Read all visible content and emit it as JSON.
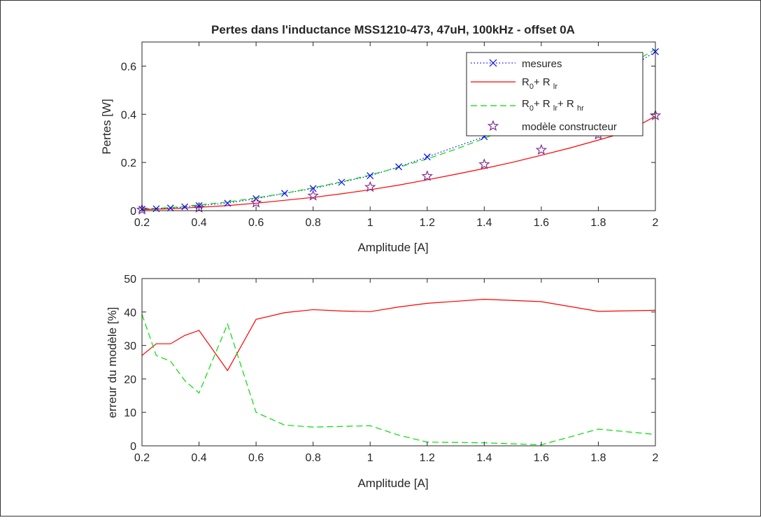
{
  "chart_data": [
    {
      "type": "line",
      "title": "Pertes dans l'inductance MSS1210-473, 47uH, 100kHz - offset 0A",
      "xlabel": "Amplitude [A]",
      "ylabel": "Pertes [W]",
      "xlim": [
        0.2,
        2
      ],
      "ylim": [
        0,
        0.7
      ],
      "xticks": [
        0.2,
        0.4,
        0.6,
        0.8,
        1,
        1.2,
        1.4,
        1.6,
        1.8,
        2
      ],
      "xtick_labels": [
        "0.2",
        "0.4",
        "0.6",
        "0.8",
        "1",
        "1.2",
        "1.4",
        "1.6",
        "1.8",
        "2"
      ],
      "yticks": [
        0,
        0.2,
        0.4,
        0.6
      ],
      "ytick_labels": [
        "0",
        "0.2",
        "0.4",
        "0.6"
      ],
      "legend_position": "top-right",
      "grid": false,
      "series": [
        {
          "name": "mesures",
          "color": "#0000ff",
          "line": "dotted",
          "marker": "x",
          "x": [
            0.2,
            0.25,
            0.3,
            0.35,
            0.4,
            0.5,
            0.6,
            0.7,
            0.8,
            0.9,
            1.0,
            1.1,
            1.2,
            1.4,
            1.6,
            1.8,
            2.0
          ],
          "y": [
            0.006,
            0.008,
            0.011,
            0.016,
            0.021,
            0.031,
            0.05,
            0.072,
            0.092,
            0.118,
            0.145,
            0.182,
            0.223,
            0.307,
            0.407,
            0.51,
            0.66
          ]
        },
        {
          "name": "R0+ R lr",
          "name_parts": {
            "main": "R",
            "sub0": "0",
            "plus1": "+ R ",
            "sub1": "lr"
          },
          "color": "#ff0000",
          "line": "solid",
          "x": [
            0.2,
            0.25,
            0.3,
            0.35,
            0.4,
            0.5,
            0.6,
            0.7,
            0.8,
            0.9,
            1.0,
            1.1,
            1.2,
            1.3,
            1.4,
            1.5,
            1.6,
            1.7,
            1.8,
            1.9,
            2.0
          ],
          "y": [
            0.004,
            0.006,
            0.008,
            0.011,
            0.014,
            0.021,
            0.031,
            0.043,
            0.055,
            0.07,
            0.087,
            0.106,
            0.128,
            0.151,
            0.175,
            0.201,
            0.23,
            0.26,
            0.293,
            0.327,
            0.392
          ]
        },
        {
          "name": "R0+ R lr+ R hr",
          "name_parts": {
            "main": "R",
            "sub0": "0",
            "plus1": "+ R ",
            "sub1": "lr",
            "plus2": "+ R ",
            "sub2": "hr"
          },
          "color": "#00dd00",
          "line": "dashed",
          "x": [
            0.2,
            0.25,
            0.3,
            0.35,
            0.4,
            0.5,
            0.6,
            0.7,
            0.8,
            0.9,
            1.0,
            1.1,
            1.2,
            1.3,
            1.4,
            1.5,
            1.6,
            1.7,
            1.8,
            1.9,
            2.0
          ],
          "y": [
            0.008,
            0.01,
            0.013,
            0.018,
            0.024,
            0.036,
            0.053,
            0.072,
            0.095,
            0.12,
            0.148,
            0.18,
            0.215,
            0.255,
            0.3,
            0.35,
            0.405,
            0.46,
            0.525,
            0.6,
            0.67
          ]
        },
        {
          "name": "modèle constructeur",
          "color": "#7e2f8e",
          "line": "none",
          "marker": "star",
          "x": [
            0.2,
            0.4,
            0.6,
            0.8,
            1.0,
            1.2,
            1.4,
            1.6,
            1.8,
            2.0
          ],
          "y": [
            0.004,
            0.012,
            0.033,
            0.062,
            0.098,
            0.143,
            0.192,
            0.252,
            0.315,
            0.395
          ]
        }
      ]
    },
    {
      "type": "line",
      "title": "",
      "xlabel": "Amplitude [A]",
      "ylabel": "erreur du modèle [%]",
      "xlim": [
        0.2,
        2
      ],
      "ylim": [
        0,
        50
      ],
      "xticks": [
        0.2,
        0.4,
        0.6,
        0.8,
        1,
        1.2,
        1.4,
        1.6,
        1.8,
        2
      ],
      "xtick_labels": [
        "0.2",
        "0.4",
        "0.6",
        "0.8",
        "1",
        "1.2",
        "1.4",
        "1.6",
        "1.8",
        "2"
      ],
      "yticks": [
        0,
        10,
        20,
        30,
        40,
        50
      ],
      "ytick_labels": [
        "0",
        "10",
        "20",
        "30",
        "40",
        "50"
      ],
      "grid": false,
      "series": [
        {
          "color": "#ff0000",
          "line": "solid",
          "x": [
            0.2,
            0.25,
            0.3,
            0.35,
            0.4,
            0.5,
            0.6,
            0.7,
            0.8,
            0.9,
            1.0,
            1.1,
            1.2,
            1.4,
            1.6,
            1.8,
            2.0
          ],
          "y": [
            27,
            30.5,
            30.5,
            33,
            34.5,
            22.5,
            37.8,
            39.8,
            40.7,
            40.3,
            40.1,
            41.5,
            42.6,
            43.8,
            43.1,
            40.2,
            40.5
          ]
        },
        {
          "color": "#00dd00",
          "line": "dashed",
          "x": [
            0.2,
            0.25,
            0.3,
            0.35,
            0.4,
            0.5,
            0.6,
            0.7,
            0.8,
            0.9,
            1.0,
            1.1,
            1.2,
            1.4,
            1.6,
            1.8,
            2.0
          ],
          "y": [
            39.3,
            27,
            25.3,
            19.5,
            15.8,
            36.4,
            10,
            6.2,
            5.6,
            5.8,
            6,
            3.2,
            1.1,
            0.9,
            0.3,
            5,
            3.4
          ]
        }
      ]
    }
  ]
}
